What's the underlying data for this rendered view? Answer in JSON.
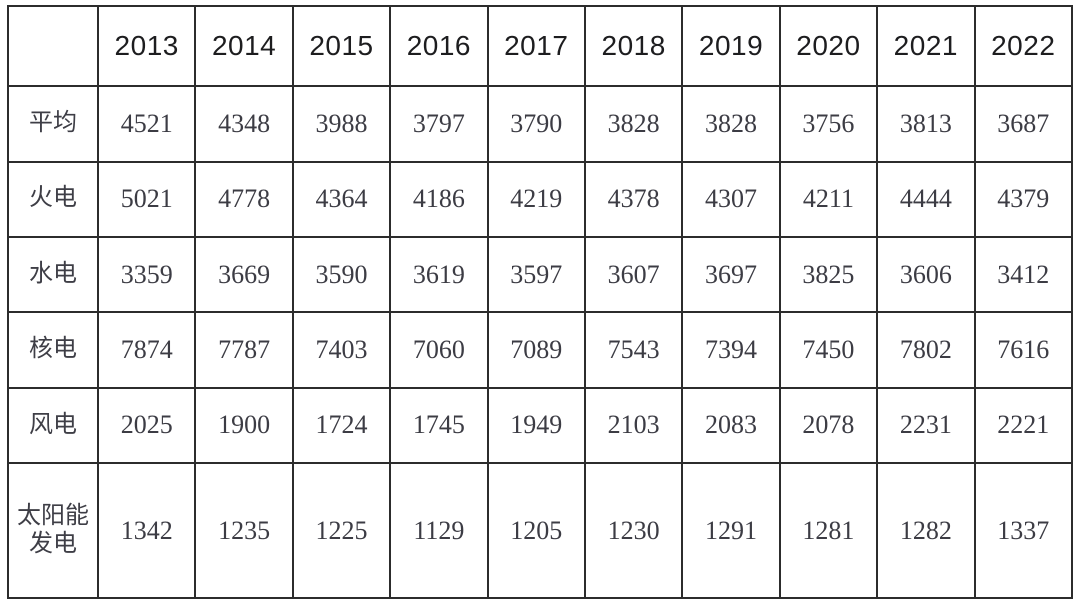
{
  "chart_data": {
    "type": "table",
    "title": "",
    "corner_label": "",
    "categories": [
      "2013",
      "2014",
      "2015",
      "2016",
      "2017",
      "2018",
      "2019",
      "2020",
      "2021",
      "2022"
    ],
    "series": [
      {
        "name": "平均",
        "values": [
          4521,
          4348,
          3988,
          3797,
          3790,
          3828,
          3828,
          3756,
          3813,
          3687
        ]
      },
      {
        "name": "火电",
        "values": [
          5021,
          4778,
          4364,
          4186,
          4219,
          4378,
          4307,
          4211,
          4444,
          4379
        ]
      },
      {
        "name": "水电",
        "values": [
          3359,
          3669,
          3590,
          3619,
          3597,
          3607,
          3697,
          3825,
          3606,
          3412
        ]
      },
      {
        "name": "核电",
        "values": [
          7874,
          7787,
          7403,
          7060,
          7089,
          7543,
          7394,
          7450,
          7802,
          7616
        ]
      },
      {
        "name": "风电",
        "values": [
          2025,
          1900,
          1724,
          1745,
          1949,
          2103,
          2083,
          2078,
          2231,
          2221
        ]
      },
      {
        "name": "太阳能发电",
        "values": [
          1342,
          1235,
          1225,
          1129,
          1205,
          1230,
          1291,
          1281,
          1282,
          1337
        ]
      }
    ],
    "layout": {
      "grid": "full-borders",
      "header_row": "years-across-top",
      "label_column": "left"
    }
  },
  "style": {
    "border_color": "#2c2c2c",
    "header_text_color": "#1d1d1f",
    "cell_text_color": "#3c3c44",
    "background_color": "#ffffff"
  }
}
